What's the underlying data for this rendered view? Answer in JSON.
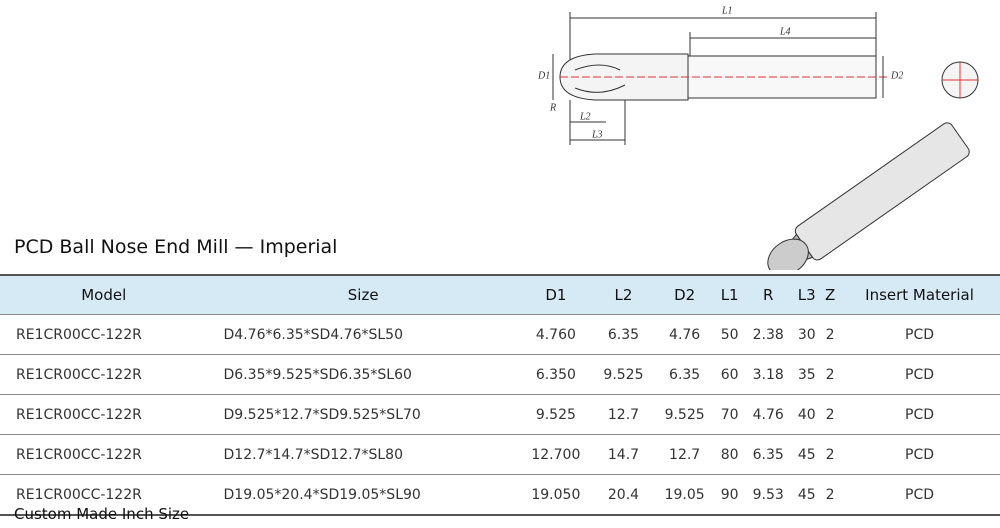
{
  "drawing": {
    "labels": [
      "L1",
      "L4",
      "D1",
      "D2",
      "R",
      "L2",
      "L3"
    ]
  },
  "header": {
    "title": "PCD Ball Nose End Mill — Imperial"
  },
  "table": {
    "columns": [
      "Model",
      "Size",
      "D1",
      "L2",
      "D2",
      "L1",
      "R",
      "L3",
      "Z",
      "Insert Material"
    ],
    "rows": [
      [
        "RE1CR00CC-122R",
        "D4.76*6.35*SD4.76*SL50",
        "4.760",
        "6.35",
        "4.76",
        "50",
        "2.38",
        "30",
        "2",
        "PCD"
      ],
      [
        "RE1CR00CC-122R",
        "D6.35*9.525*SD6.35*SL60",
        "6.350",
        "9.525",
        "6.35",
        "60",
        "3.18",
        "35",
        "2",
        "PCD"
      ],
      [
        "RE1CR00CC-122R",
        "D9.525*12.7*SD9.525*SL70",
        "9.525",
        "12.7",
        "9.525",
        "70",
        "4.76",
        "40",
        "2",
        "PCD"
      ],
      [
        "RE1CR00CC-122R",
        "D12.7*14.7*SD12.7*SL80",
        "12.700",
        "14.7",
        "12.7",
        "80",
        "6.35",
        "45",
        "2",
        "PCD"
      ],
      [
        "RE1CR00CC-122R",
        "D19.05*20.4*SD19.05*SL90",
        "19.050",
        "20.4",
        "19.05",
        "90",
        "9.53",
        "45",
        "2",
        "PCD"
      ]
    ]
  },
  "footer": "Custom Made Inch Size"
}
